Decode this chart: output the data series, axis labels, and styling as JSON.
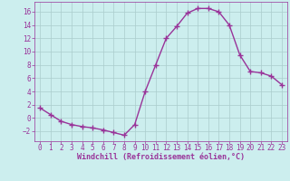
{
  "x": [
    0,
    1,
    2,
    3,
    4,
    5,
    6,
    7,
    8,
    9,
    10,
    11,
    12,
    13,
    14,
    15,
    16,
    17,
    18,
    19,
    20,
    21,
    22,
    23
  ],
  "y": [
    1.5,
    0.5,
    -0.5,
    -1.0,
    -1.3,
    -1.5,
    -1.8,
    -2.2,
    -2.6,
    -1.0,
    4.0,
    8.0,
    12.0,
    13.8,
    15.8,
    16.5,
    16.5,
    16.0,
    14.0,
    9.5,
    7.0,
    6.8,
    6.3,
    5.0
  ],
  "line_color": "#993399",
  "marker": "+",
  "markersize": 4,
  "linewidth": 1.0,
  "bg_color": "#cceeee",
  "grid_color": "#aacccc",
  "xlabel": "Windchill (Refroidissement éolien,°C)",
  "xlabel_color": "#993399",
  "tick_color": "#993399",
  "xlabel_fontsize": 6.0,
  "tick_fontsize": 5.5,
  "xlim": [
    -0.5,
    23.5
  ],
  "ylim": [
    -3.5,
    17.5
  ],
  "yticks": [
    -2,
    0,
    2,
    4,
    6,
    8,
    10,
    12,
    14,
    16
  ],
  "xticks": [
    0,
    1,
    2,
    3,
    4,
    5,
    6,
    7,
    8,
    9,
    10,
    11,
    12,
    13,
    14,
    15,
    16,
    17,
    18,
    19,
    20,
    21,
    22,
    23
  ]
}
